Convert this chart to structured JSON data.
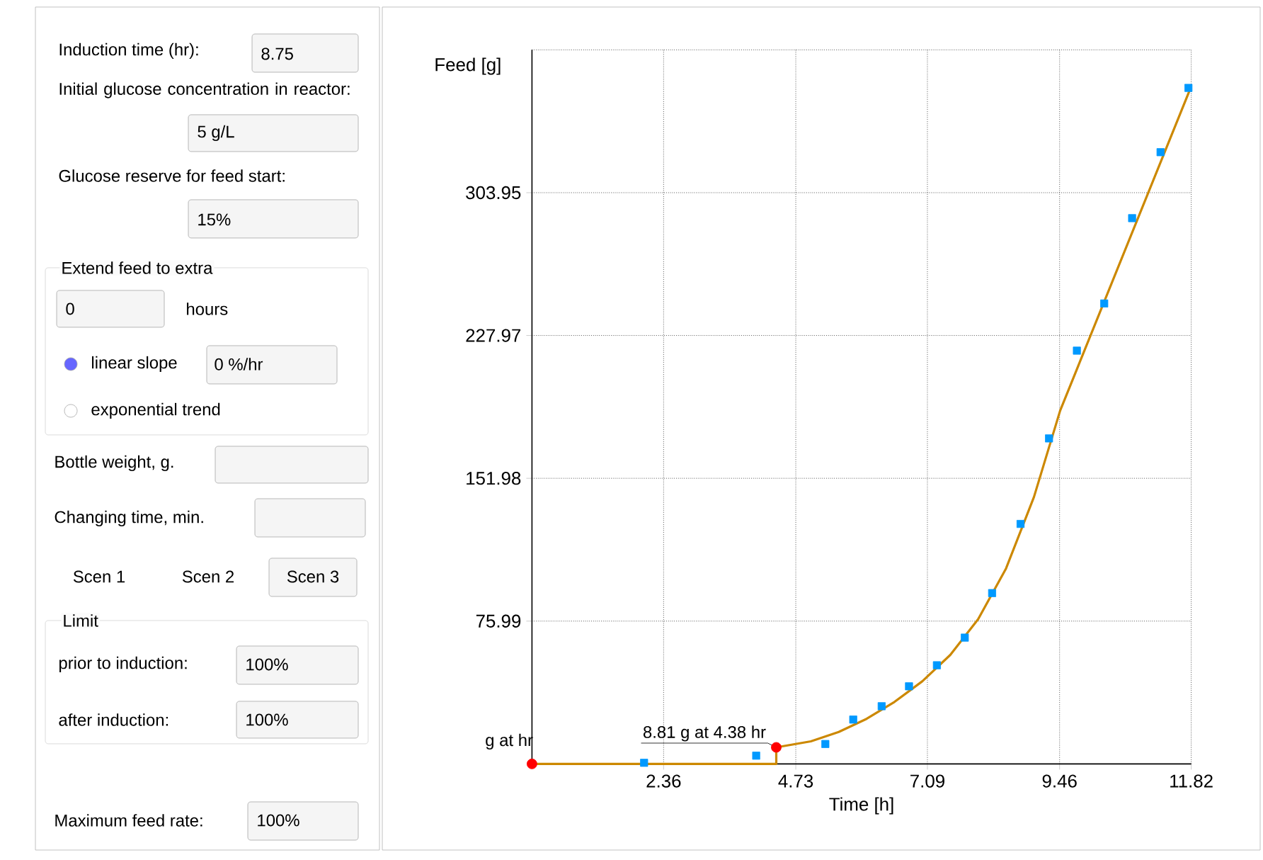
{
  "chart_data": [
    {
      "type": "other",
      "annotations": [
        "Induction time (hr):",
        "8.75",
        "Initial glucose concentration in reactor:",
        "5 g/L",
        "Glucose reserve for feed start:",
        "15%",
        "Extend feed to extra",
        "0",
        "hours",
        "linear slope",
        "0 %/hr",
        "exponential trend",
        "Bottle weight, g.",
        "Changing time, min.",
        "Scen 1",
        "Scen 2",
        "Scen 3",
        "Limit",
        "prior to induction:",
        "100%",
        "after induction:",
        "100%",
        "Maximum feed rate:",
        "100%"
      ]
    },
    {
      "type": "line",
      "xlabel": "Time [h]",
      "ylabel": "Feed [g]",
      "xlim": [
        0,
        11.82
      ],
      "ylim": [
        0,
        379.95
      ],
      "xticks": [
        2.36,
        4.73,
        7.09,
        9.46,
        11.82
      ],
      "yticks": [
        75.99,
        151.98,
        227.97,
        303.95
      ],
      "grid": true,
      "series": [
        {
          "type": "line",
          "color": "#cc8800",
          "marker": "none",
          "x": [
            0,
            4.38,
            4.38,
            5,
            5.5,
            6,
            6.5,
            7,
            7.5,
            8,
            8.5,
            9,
            9.47,
            11.8
          ],
          "values": [
            0,
            0,
            8.81,
            12,
            17,
            24,
            33,
            44,
            58,
            77,
            104,
            142,
            188,
            359
          ]
        },
        {
          "type": "scatter",
          "color": "#0099ff",
          "marker": "square",
          "x": [
            2.01,
            4.02,
            5.26,
            5.76,
            6.27,
            6.76,
            7.26,
            7.76,
            8.25,
            8.76,
            9.27,
            9.77,
            10.26,
            10.76,
            11.27,
            11.77
          ],
          "values": [
            0.6,
            4.4,
            10.6,
            23.6,
            30.7,
            41.3,
            52.5,
            67.2,
            90.9,
            127.7,
            173.2,
            219.9,
            245.0,
            290.4,
            325.5,
            359.7
          ]
        },
        {
          "type": "scatter",
          "color": "#ff0000",
          "marker": "circle",
          "x": [
            0,
            4.38
          ],
          "values": [
            0,
            8.81
          ]
        }
      ],
      "annotations": [
        {
          "text": "g at  hr",
          "x": 0,
          "y": 0
        },
        {
          "text": "8.81 g at 4.38 hr",
          "x": 4.38,
          "y": 8.81
        }
      ]
    }
  ]
}
